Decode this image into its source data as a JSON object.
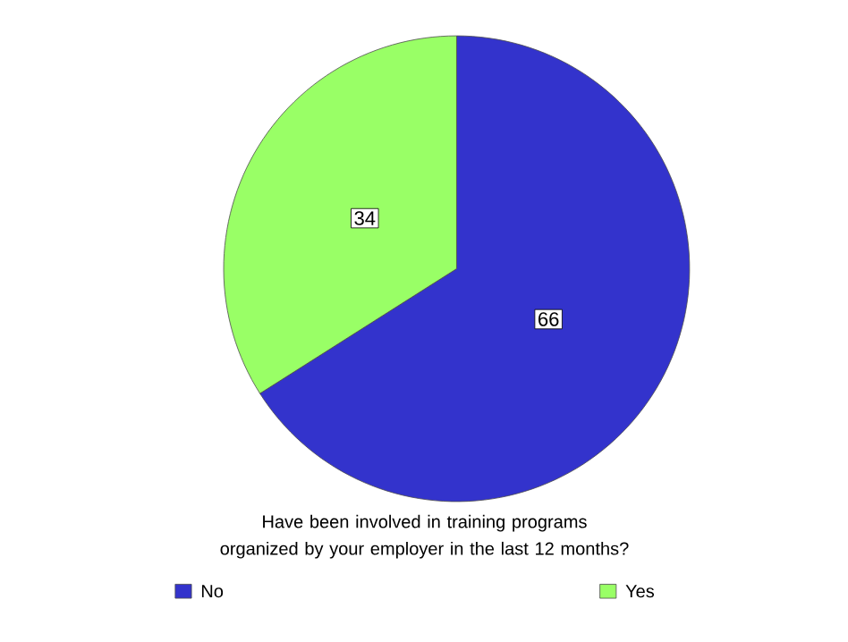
{
  "chart_data": {
    "type": "pie",
    "legend_title": "Have been involved in training programs organized by your employer in the last 12 months?",
    "categories": [
      "No",
      "Yes"
    ],
    "values": [
      66,
      34
    ],
    "colors": [
      "#3333cc",
      "#99ff66"
    ],
    "data_labels": true,
    "legend": "bottom"
  }
}
